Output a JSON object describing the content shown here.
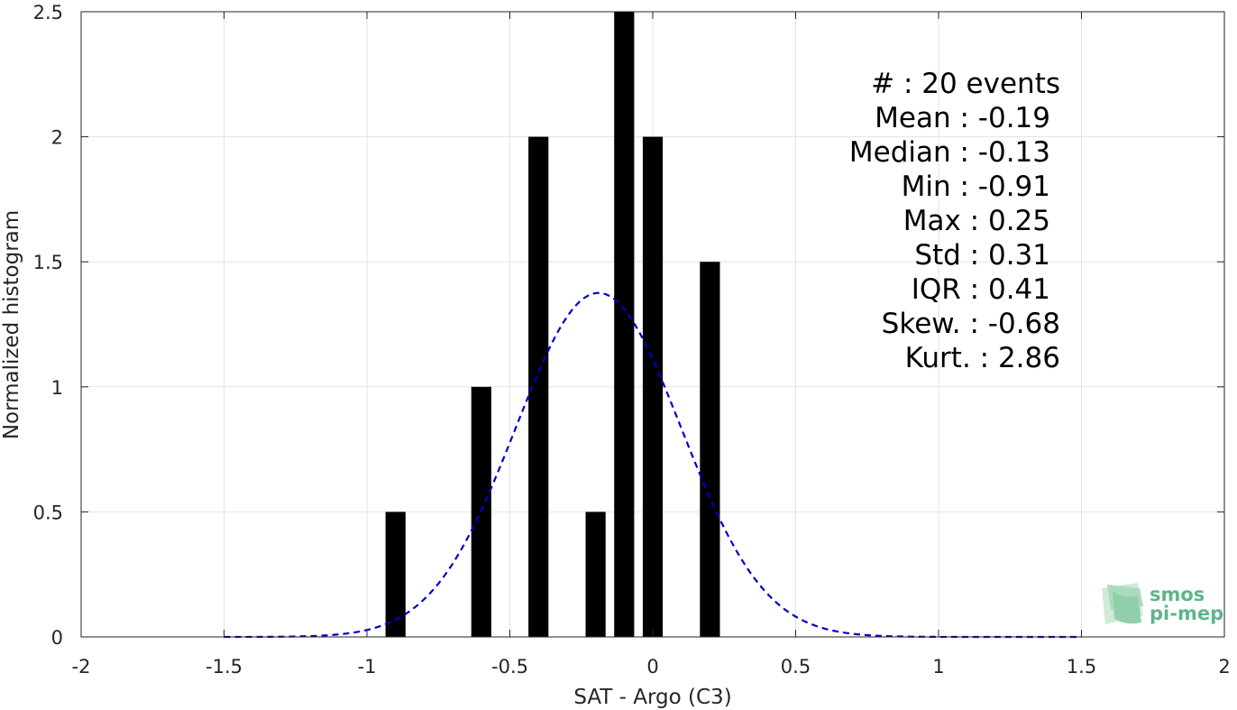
{
  "chart_data": {
    "type": "bar",
    "xlabel": "SAT - Argo (C3)",
    "ylabel": "Normalized histogram",
    "xlim": [
      -2,
      2
    ],
    "ylim": [
      0,
      2.5
    ],
    "grid": true,
    "xticks": [
      -2,
      -1.5,
      -1,
      -0.5,
      0,
      0.5,
      1,
      1.5,
      2
    ],
    "xtick_labels": [
      "-2",
      "-1.5",
      "-1",
      "-0.5",
      "0",
      "0.5",
      "1",
      "1.5",
      "2"
    ],
    "yticks": [
      0,
      0.5,
      1,
      1.5,
      2,
      2.5
    ],
    "ytick_labels": [
      "0",
      "0.5",
      "1",
      "1.5",
      "2",
      "2.5"
    ],
    "bar_width": 0.07,
    "bars": [
      {
        "x": -0.9,
        "value": 0.5
      },
      {
        "x": -0.6,
        "value": 1.0
      },
      {
        "x": -0.4,
        "value": 2.0
      },
      {
        "x": -0.2,
        "value": 0.5
      },
      {
        "x": -0.1,
        "value": 2.5
      },
      {
        "x": 0.0,
        "value": 2.0
      },
      {
        "x": 0.2,
        "value": 1.5
      }
    ],
    "bar_color": "#000000",
    "fit_curve": {
      "style": "dashed",
      "color": "#0000cc",
      "mean": -0.19,
      "std": 0.29,
      "x_range": [
        -1.5,
        1.5
      ]
    },
    "stats": [
      "#  : 20 events",
      "Mean : -0.19",
      "Median : -0.13",
      "Min : -0.91",
      "Max : 0.25",
      "Std : 0.31",
      "IQR : 0.41",
      "Skew. : -0.68",
      "Kurt. : 2.86"
    ]
  },
  "logo": {
    "line1": "smos",
    "line2": "pi-mep",
    "color": "#5fb58a"
  }
}
